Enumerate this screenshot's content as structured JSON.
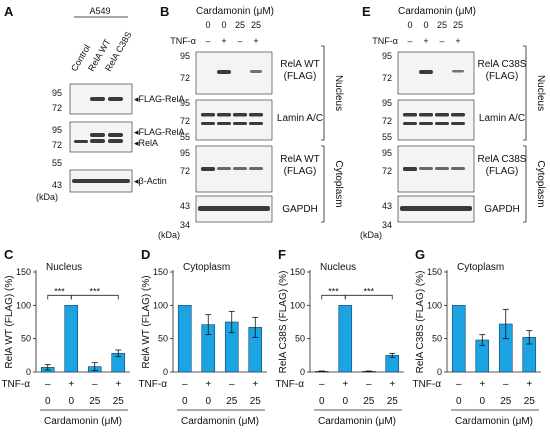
{
  "figure": {
    "panels": {
      "A": {
        "letter": "A",
        "cell_line": "A549",
        "lanes": [
          "Control",
          "RelA WT",
          "RelA C38S"
        ],
        "markers": [
          "95",
          "72",
          "95",
          "72",
          "55",
          "43"
        ],
        "unit": "(kDa)",
        "labels": [
          "FLAG-RelA",
          "FLAG-RelA",
          "RelA",
          "β-Actin"
        ]
      },
      "B": {
        "letter": "B",
        "treatment": "Cardamonin (μM)",
        "doses": [
          "0",
          "0",
          "25",
          "25"
        ],
        "tnf_label": "TNF-α",
        "tnf": [
          "–",
          "+",
          "–",
          "+"
        ],
        "markers": [
          "95",
          "72",
          "95",
          "72",
          "55",
          "95",
          "72",
          "43",
          "34"
        ],
        "unit": "(kDa)",
        "blots": [
          "RelA WT\n(FLAG)",
          "Lamin A/C",
          "RelA WT\n(FLAG)",
          "GAPDH"
        ],
        "fractions": [
          "Nucleus",
          "Cytoplasm"
        ]
      },
      "E": {
        "letter": "E",
        "treatment": "Cardamonin (μM)",
        "doses": [
          "0",
          "0",
          "25",
          "25"
        ],
        "tnf_label": "TNF-α",
        "tnf": [
          "–",
          "+",
          "–",
          "+"
        ],
        "markers": [
          "95",
          "72",
          "95",
          "72",
          "55",
          "95",
          "72",
          "43",
          "34"
        ],
        "unit": "(kDa)",
        "blots": [
          "RelA C38S\n(FLAG)",
          "Lamin A/C",
          "RelA C38S\n(FLAG)",
          "GAPDH"
        ],
        "fractions": [
          "Nucleus",
          "Cytoplasm"
        ]
      }
    }
  },
  "chart_data": [
    {
      "letter": "C",
      "type": "bar",
      "title": "Nucleus",
      "ylabel": "RelA WT (FLAG) (%)",
      "ylim": [
        0,
        150
      ],
      "yticks": [
        "0",
        "50",
        "100",
        "150"
      ],
      "tnf_label": "TNF-α",
      "tnf": [
        "–",
        "+",
        "–",
        "+"
      ],
      "categories": [
        "0",
        "0",
        "25",
        "25"
      ],
      "xlabel": "Cardamonin (μM)",
      "values": [
        7,
        100,
        8,
        28
      ],
      "errors": [
        4,
        0,
        6,
        5
      ],
      "sig": [
        {
          "from": 0,
          "to": 1,
          "label": "***"
        },
        {
          "from": 1,
          "to": 3,
          "label": "***"
        }
      ]
    },
    {
      "letter": "D",
      "type": "bar",
      "title": "Cytoplasm",
      "ylabel": "RelA WT (FLAG) (%)",
      "ylim": [
        0,
        150
      ],
      "yticks": [
        "0",
        "50",
        "100",
        "150"
      ],
      "tnf_label": "TNF-α",
      "tnf": [
        "–",
        "+",
        "–",
        "+"
      ],
      "categories": [
        "0",
        "0",
        "25",
        "25"
      ],
      "xlabel": "Cardamonin (μM)",
      "values": [
        100,
        71,
        75,
        67
      ],
      "errors": [
        0,
        15,
        16,
        15
      ],
      "sig": []
    },
    {
      "letter": "F",
      "type": "bar",
      "title": "Nucleus",
      "ylabel": "RelA C38S (FLAG) (%)",
      "ylim": [
        0,
        150
      ],
      "yticks": [
        "0",
        "50",
        "100",
        "150"
      ],
      "tnf_label": "TNF-α",
      "tnf": [
        "–",
        "+",
        "–",
        "+"
      ],
      "categories": [
        "0",
        "0",
        "25",
        "25"
      ],
      "xlabel": "Cardamonin (μM)",
      "values": [
        1,
        100,
        1,
        25
      ],
      "errors": [
        0.5,
        0,
        0.5,
        3
      ],
      "sig": [
        {
          "from": 0,
          "to": 1,
          "label": "***"
        },
        {
          "from": 1,
          "to": 3,
          "label": "***"
        }
      ]
    },
    {
      "letter": "G",
      "type": "bar",
      "title": "Cytoplasm",
      "ylabel": "RelA C38S (FLAG) (%)",
      "ylim": [
        0,
        150
      ],
      "yticks": [
        "0",
        "50",
        "100",
        "150"
      ],
      "tnf_label": "TNF-α",
      "tnf": [
        "–",
        "+",
        "–",
        "+"
      ],
      "categories": [
        "0",
        "0",
        "25",
        "25"
      ],
      "xlabel": "Cardamonin (μM)",
      "values": [
        100,
        48,
        72,
        52
      ],
      "errors": [
        0,
        8,
        22,
        10
      ],
      "sig": []
    }
  ]
}
